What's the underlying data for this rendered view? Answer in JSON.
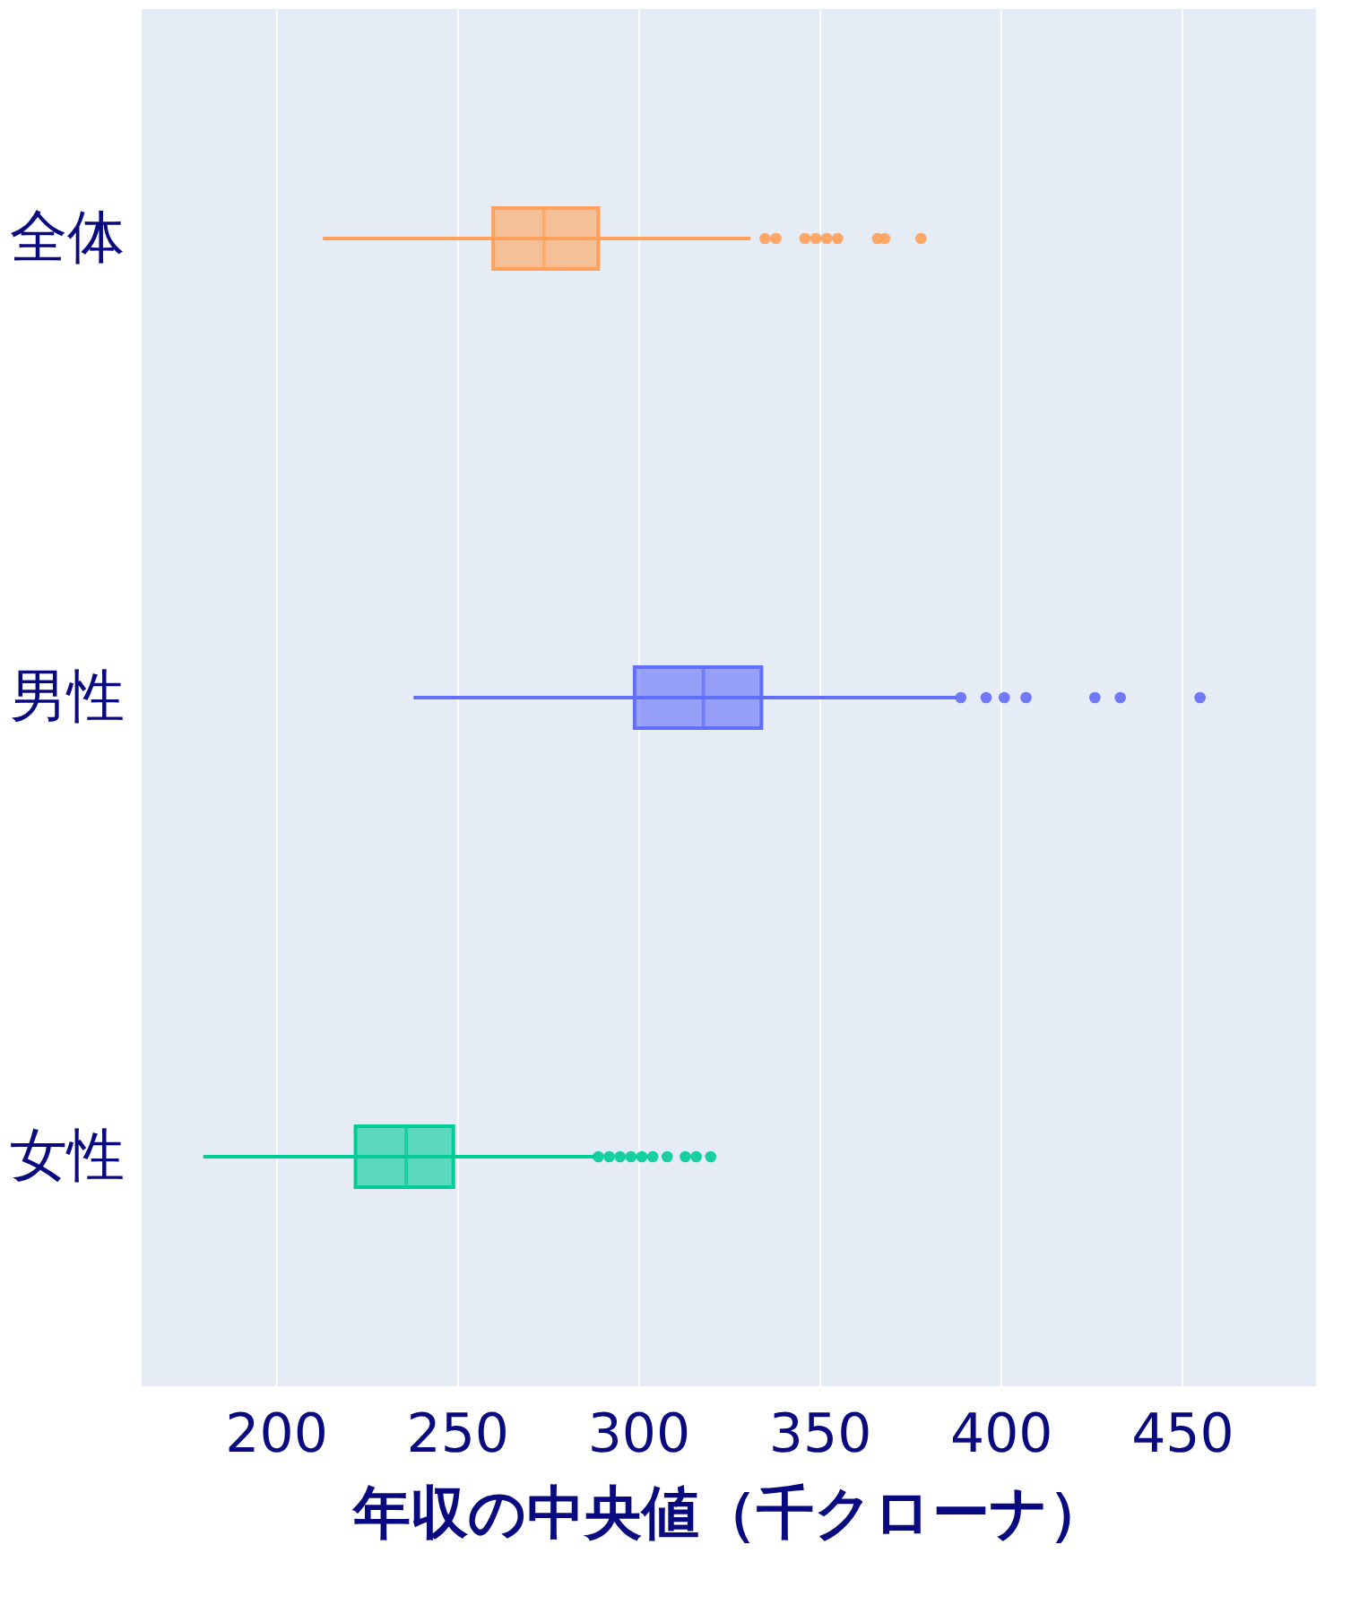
{
  "chart_data": {
    "type": "box",
    "orientation": "horizontal",
    "xlabel": "年収の中央値（千クローナ）",
    "categories": [
      "全体",
      "男性",
      "女性"
    ],
    "colors": [
      "#ffa15a",
      "#636efa",
      "#00cc96"
    ],
    "boxes": [
      {
        "low": 213,
        "q1": 260,
        "median": 274,
        "q3": 289,
        "high": 331,
        "outliers": [
          335,
          338,
          346,
          349,
          352,
          355,
          366,
          368,
          378
        ]
      },
      {
        "low": 238,
        "q1": 299,
        "median": 318,
        "q3": 334,
        "high": 388,
        "outliers": [
          389,
          396,
          401,
          407,
          426,
          433,
          455
        ]
      },
      {
        "low": 180,
        "q1": 222,
        "median": 236,
        "q3": 249,
        "high": 288,
        "outliers": [
          289,
          292,
          295,
          298,
          301,
          304,
          308,
          313,
          316,
          320
        ]
      }
    ],
    "xlim": [
      163,
      487
    ],
    "xticks": [
      200,
      250,
      300,
      350,
      400,
      450
    ],
    "grid": "x",
    "legend": false
  }
}
